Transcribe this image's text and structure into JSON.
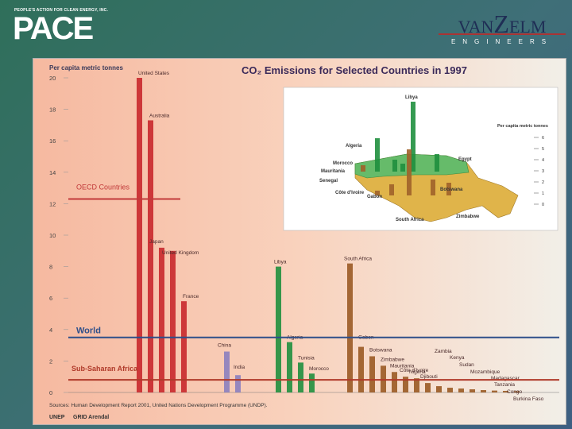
{
  "header": {
    "pace_tagline": "PEOPLE'S ACTION FOR CLEAN ENERGY, INC.",
    "pace_logo": "PACE",
    "vanzelm_name_a": "VAN",
    "vanzelm_name_b": "Z",
    "vanzelm_name_c": "ELM",
    "vanzelm_sub": "ENGINEERS"
  },
  "chart_data": [
    {
      "type": "bar",
      "title": "CO₂ Emissions for Selected Countries in 1997",
      "ylabel": "Per capita metric tonnes",
      "ylim": [
        0,
        20
      ],
      "yticks": [
        0,
        2,
        4,
        6,
        8,
        10,
        12,
        14,
        16,
        18,
        20
      ],
      "categories": [
        "United States",
        "Australia",
        "Japan",
        "United Kingdom",
        "France",
        "China",
        "India",
        "Libya",
        "Algeria",
        "Tunisia",
        "Morocco",
        "South Africa",
        "Gabon",
        "Botswana",
        "Zimbabwe",
        "Mauritania",
        "Côte d'Ivoire",
        "Nigeria",
        "Djibouti",
        "Zambia",
        "Kenya",
        "Sudan",
        "Mozambique",
        "Madagascar",
        "Tanzania",
        "Congo",
        "Burkina Faso"
      ],
      "values": [
        20,
        17.3,
        9.2,
        9.0,
        5.8,
        2.6,
        1.1,
        8.0,
        3.2,
        1.9,
        1.2,
        8.2,
        2.9,
        2.3,
        1.7,
        1.3,
        1.0,
        0.9,
        0.6,
        0.4,
        0.3,
        0.25,
        0.2,
        0.15,
        0.12,
        0.1,
        0.08
      ],
      "groups": [
        {
          "color": "#c8282c",
          "count": 5
        },
        {
          "color": "#8b7fbf",
          "count": 2
        },
        {
          "color": "#1f8f3e",
          "count": 4
        },
        {
          "color": "#9a5a24",
          "count": 16
        }
      ],
      "reference_lines": [
        {
          "label": "OECD Countries",
          "value": 12.3,
          "color": "#c23a3a"
        },
        {
          "label": "World",
          "value": 3.5,
          "color": "#2e4f8a"
        },
        {
          "label": "Sub-Saharan Africa",
          "value": 0.8,
          "color": "#b03a2a"
        }
      ],
      "source": "Sources: Human Development Report 2001, United Nations Development Programme (UNDP)."
    },
    {
      "type": "map",
      "ylabel": "Per capita metric tonnes",
      "yticks": [
        0,
        1,
        2,
        3,
        4,
        5,
        6
      ],
      "labels": [
        "Libya",
        "Algeria",
        "Egypt",
        "Morocco",
        "Mauritania",
        "Senegal",
        "Côte d'Ivoire",
        "Gabon",
        "Botswana",
        "Zimbabwe",
        "South Africa"
      ]
    }
  ],
  "footer": {
    "logo_a": "UNEP",
    "logo_b": "GRID Arendal"
  }
}
